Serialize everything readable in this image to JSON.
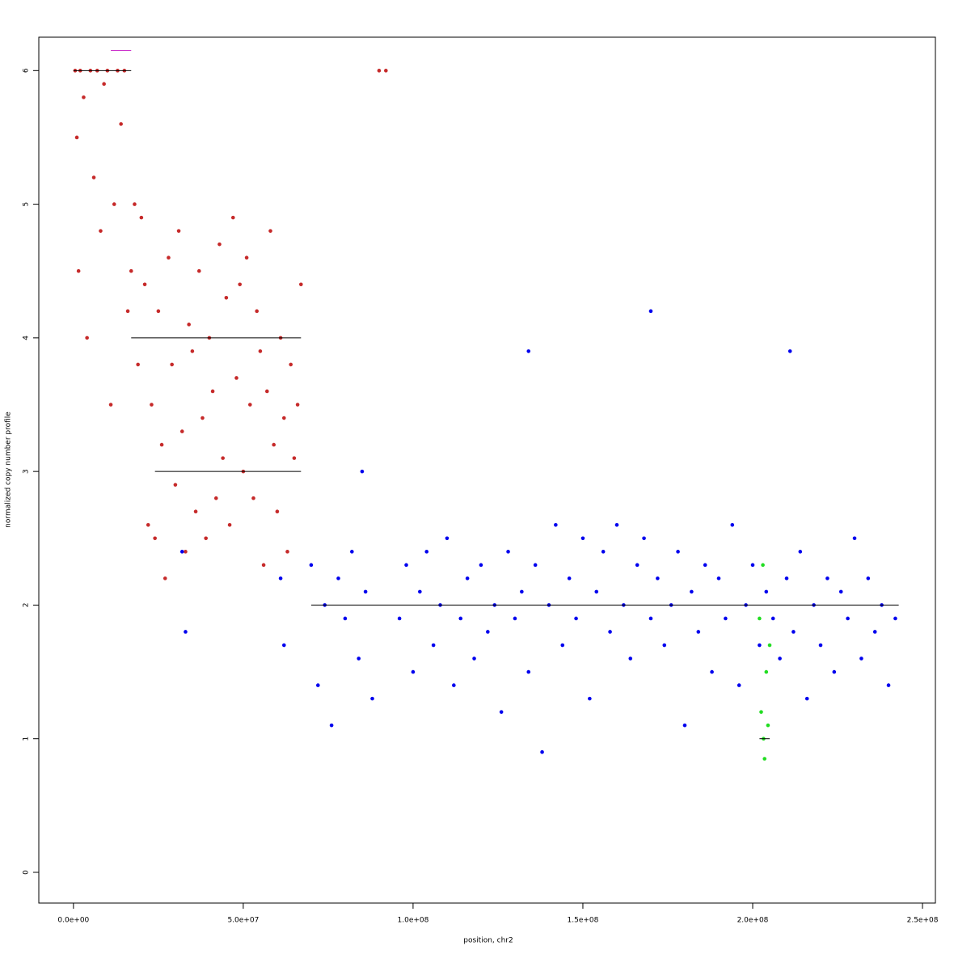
{
  "chart_data": {
    "type": "scatter",
    "xlabel": "position, chr2",
    "ylabel": "normalized copy number profile",
    "xlim": [
      -10200000,
      253800000
    ],
    "ylim": [
      -0.23,
      6.25
    ],
    "xticks": [
      {
        "value": 0,
        "label": "0.0e+00"
      },
      {
        "value": 50000000,
        "label": "5.0e+07"
      },
      {
        "value": 100000000,
        "label": "1.0e+08"
      },
      {
        "value": 150000000,
        "label": "1.5e+08"
      },
      {
        "value": 200000000,
        "label": "2.0e+08"
      },
      {
        "value": 250000000,
        "label": "2.5e+08"
      }
    ],
    "yticks": [
      0,
      1,
      2,
      3,
      4,
      5,
      6
    ],
    "series": [
      {
        "color": "#c62a2a",
        "x": [
          500000,
          1000000,
          1500000,
          2000000,
          3000000,
          4000000,
          5000000,
          6000000,
          7000000,
          8000000,
          9000000,
          10000000,
          11000000,
          12000000,
          13000000,
          14000000,
          15000000,
          16000000,
          17000000,
          18000000,
          19000000,
          20000000,
          21000000,
          22000000,
          23000000,
          24000000,
          25000000,
          26000000,
          27000000,
          28000000,
          29000000,
          30000000,
          31000000,
          32000000,
          33000000,
          34000000,
          35000000,
          36000000,
          37000000,
          38000000,
          39000000,
          40000000,
          41000000,
          42000000,
          43000000,
          44000000,
          45000000,
          46000000,
          47000000,
          48000000,
          49000000,
          50000000,
          51000000,
          52000000,
          53000000,
          54000000,
          55000000,
          56000000,
          57000000,
          58000000,
          59000000,
          60000000,
          61000000,
          62000000,
          63000000,
          64000000,
          65000000,
          66000000,
          67000000,
          90000000,
          92000000
        ],
        "values": [
          6,
          5.5,
          4.5,
          6,
          5.8,
          4,
          6,
          5.2,
          6,
          4.8,
          5.9,
          6,
          3.5,
          5,
          6,
          5.6,
          6,
          4.2,
          4.5,
          5,
          3.8,
          4.9,
          4.4,
          2.6,
          3.5,
          2.5,
          4.2,
          3.2,
          2.2,
          4.6,
          3.8,
          2.9,
          4.8,
          3.3,
          2.4,
          4.1,
          3.9,
          2.7,
          4.5,
          3.4,
          2.5,
          4,
          3.6,
          2.8,
          4.7,
          3.1,
          4.3,
          2.6,
          4.9,
          3.7,
          4.4,
          3,
          4.6,
          3.5,
          2.8,
          4.2,
          3.9,
          2.3,
          3.6,
          4.8,
          3.2,
          2.7,
          4,
          3.4,
          2.4,
          3.8,
          3.1,
          3.5,
          4.4,
          6,
          6
        ]
      },
      {
        "color": "#0000ee",
        "x": [
          32000000,
          33000000,
          61000000,
          62000000,
          70000000,
          72000000,
          74000000,
          76000000,
          78000000,
          80000000,
          82000000,
          84000000,
          86000000,
          88000000,
          96000000,
          98000000,
          100000000,
          102000000,
          104000000,
          106000000,
          108000000,
          110000000,
          112000000,
          114000000,
          116000000,
          118000000,
          120000000,
          122000000,
          124000000,
          126000000,
          128000000,
          130000000,
          132000000,
          134000000,
          136000000,
          138000000,
          140000000,
          142000000,
          144000000,
          146000000,
          148000000,
          150000000,
          152000000,
          154000000,
          156000000,
          158000000,
          160000000,
          162000000,
          164000000,
          166000000,
          168000000,
          170000000,
          172000000,
          174000000,
          176000000,
          178000000,
          180000000,
          182000000,
          184000000,
          186000000,
          188000000,
          190000000,
          192000000,
          194000000,
          196000000,
          198000000,
          200000000,
          202000000,
          204000000,
          206000000,
          208000000,
          210000000,
          212000000,
          214000000,
          216000000,
          218000000,
          220000000,
          222000000,
          224000000,
          226000000,
          228000000,
          230000000,
          232000000,
          234000000,
          236000000,
          238000000,
          240000000,
          242000000,
          85000000,
          134000000,
          170000000,
          211000000
        ],
        "values": [
          2.4,
          1.8,
          2.2,
          1.7,
          2.3,
          1.4,
          2.0,
          1.1,
          2.2,
          1.9,
          2.4,
          1.6,
          2.1,
          1.3,
          1.9,
          2.3,
          1.5,
          2.1,
          2.4,
          1.7,
          2.0,
          2.5,
          1.4,
          1.9,
          2.2,
          1.6,
          2.3,
          1.8,
          2.0,
          1.2,
          2.4,
          1.9,
          2.1,
          1.5,
          2.3,
          0.9,
          2.0,
          2.6,
          1.7,
          2.2,
          1.9,
          2.5,
          1.3,
          2.1,
          2.4,
          1.8,
          2.6,
          2.0,
          1.6,
          2.3,
          2.5,
          1.9,
          2.2,
          1.7,
          2.0,
          2.4,
          1.1,
          2.1,
          1.8,
          2.3,
          1.5,
          2.2,
          1.9,
          2.6,
          1.4,
          2.0,
          2.3,
          1.7,
          2.1,
          1.9,
          1.6,
          2.2,
          1.8,
          2.4,
          1.3,
          2.0,
          1.7,
          2.2,
          1.5,
          2.1,
          1.9,
          2.5,
          1.6,
          2.2,
          1.8,
          2.0,
          1.4,
          1.9,
          3.0,
          3.9,
          4.2,
          3.9
        ]
      },
      {
        "color": "#22dd22",
        "x": [
          202000000,
          202500000,
          203000000,
          203500000,
          204000000,
          204500000,
          205000000,
          203200000
        ],
        "values": [
          1.9,
          1.2,
          2.3,
          0.85,
          1.5,
          1.1,
          1.7,
          1.0
        ]
      }
    ],
    "segments": [
      {
        "x0": 0,
        "x1": 17000000,
        "y": 6,
        "color": "#000000"
      },
      {
        "x0": 17000000,
        "x1": 67000000,
        "y": 4,
        "color": "#000000"
      },
      {
        "x0": 24000000,
        "x1": 67000000,
        "y": 3,
        "color": "#000000"
      },
      {
        "x0": 70000000,
        "x1": 243000000,
        "y": 2,
        "color": "#000000"
      },
      {
        "x0": 202000000,
        "x1": 205000000,
        "y": 1,
        "color": "#000000"
      },
      {
        "x0": 11000000,
        "x1": 17000000,
        "y": 6.15,
        "color": "#cc33cc"
      }
    ]
  }
}
